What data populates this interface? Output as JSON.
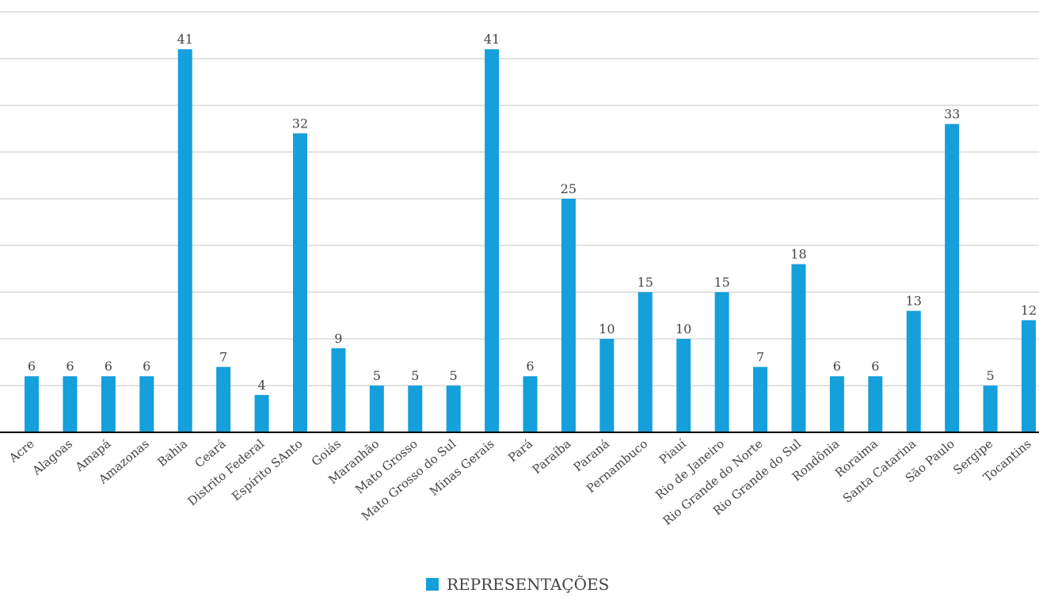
{
  "chart_data": {
    "type": "bar",
    "categories": [
      "Acre",
      "Alagoas",
      "Amapá",
      "Amazonas",
      "Bahia",
      "Ceará",
      "Distrito Federal",
      "Espírito SAnto",
      "Goiás",
      "Maranhão",
      "Mato Grosso",
      "Mato Grosso do Sul",
      "Minas Gerais",
      "Pará",
      "Paraíba",
      "Paraná",
      "Pernambuco",
      "Piauí",
      "Rio de Janeiro",
      "Rio Grande do Norte",
      "Rio Grande do Sul",
      "Rondônia",
      "Roraima",
      "Santa Catarina",
      "São Paulo",
      "Sergipe",
      "Tocantins"
    ],
    "series": [
      {
        "name": "REPRESENTAÇÕES",
        "values": [
          6,
          6,
          6,
          6,
          41,
          7,
          4,
          32,
          9,
          5,
          5,
          5,
          41,
          6,
          25,
          10,
          15,
          10,
          15,
          7,
          18,
          6,
          6,
          13,
          33,
          5,
          12
        ]
      }
    ],
    "ylim": [
      0,
      45
    ],
    "y_grid_step": 5,
    "grid": true,
    "data_labels": true,
    "legend_position": "bottom-center",
    "bar_color": "#159fdb",
    "grid_color": "#c4c4c4",
    "axis_color": "#000000",
    "label_color": "#444444",
    "title": "",
    "xlabel": "",
    "ylabel": ""
  }
}
